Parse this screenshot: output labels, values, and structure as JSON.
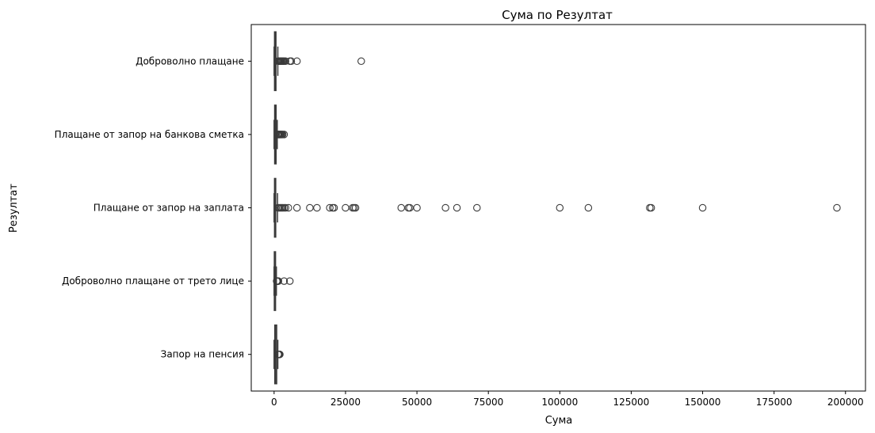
{
  "chart_data": {
    "type": "boxplot",
    "orientation": "horizontal",
    "title": "Сума по Резултат",
    "xlabel": "Сума",
    "ylabel": "Резултат",
    "xlim": [
      -8000,
      207000
    ],
    "xticks": [
      0,
      25000,
      50000,
      75000,
      100000,
      125000,
      150000,
      175000,
      200000
    ],
    "xtick_labels": [
      "0",
      "25000",
      "50000",
      "75000",
      "100000",
      "125000",
      "150000",
      "175000",
      "200000"
    ],
    "grid": false,
    "box_color": "#3a3a3a",
    "categories": [
      "Доброволно плащане",
      "Плащане от запор на банкова сметка",
      "Плащане от запор на заплата",
      "Доброволно плащане от трето лице",
      "Запор на пенсия"
    ],
    "boxes": [
      {
        "whisker_low": 0,
        "q1": 150,
        "median": 300,
        "q3": 650,
        "whisker_high": 1300,
        "outliers": [
          1400,
          1600,
          1800,
          2000,
          2200,
          2400,
          2600,
          2900,
          3200,
          3500,
          4000,
          5500,
          6000,
          8000,
          30500
        ]
      },
      {
        "whisker_low": 0,
        "q1": 200,
        "median": 450,
        "q3": 700,
        "whisker_high": 1100,
        "outliers": [
          1200,
          1400,
          1600,
          1800,
          2000,
          2200,
          2400,
          2700,
          3000,
          3500
        ]
      },
      {
        "whisker_low": 0,
        "q1": 150,
        "median": 300,
        "q3": 550,
        "whisker_high": 1200,
        "outliers": [
          1400,
          1800,
          2200,
          2600,
          3000,
          3500,
          4000,
          5000,
          8000,
          12500,
          15000,
          19500,
          20500,
          21000,
          25000,
          27500,
          28000,
          28500,
          44500,
          47000,
          47500,
          50000,
          60000,
          64000,
          71000,
          100000,
          110000,
          131500,
          132000,
          150000,
          197000
        ]
      },
      {
        "whisker_low": 0,
        "q1": 80,
        "median": 200,
        "q3": 380,
        "whisker_high": 800,
        "outliers": [
          900,
          1000,
          1100,
          1200,
          1300,
          1500,
          3500,
          5500
        ]
      },
      {
        "whisker_low": 0,
        "q1": 250,
        "median": 500,
        "q3": 900,
        "whisker_high": 1300,
        "outliers": [
          1400,
          1500,
          1600,
          1700,
          1800,
          1900,
          2000
        ]
      }
    ]
  }
}
